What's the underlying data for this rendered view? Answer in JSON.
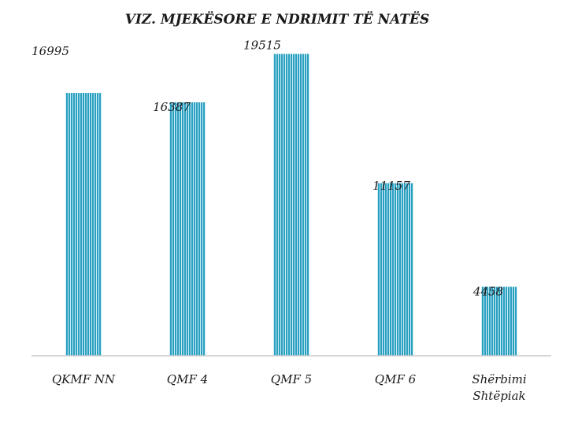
{
  "chart_data": {
    "type": "bar",
    "title": "VIZ. MJEKËSORE E NDRIMIT TË NATËS",
    "categories": [
      "QKMF NN",
      "QMF 4",
      "QMF 5",
      "QMF 6",
      "Shërbimi Shtëpiak"
    ],
    "values": [
      16995,
      16387,
      19515,
      11157,
      4458
    ],
    "ylim": [
      0,
      20000
    ],
    "grid": false,
    "legend": "none",
    "bar_color": "#2a9fc0",
    "bar_stripe_color": "#c9ecf5"
  }
}
